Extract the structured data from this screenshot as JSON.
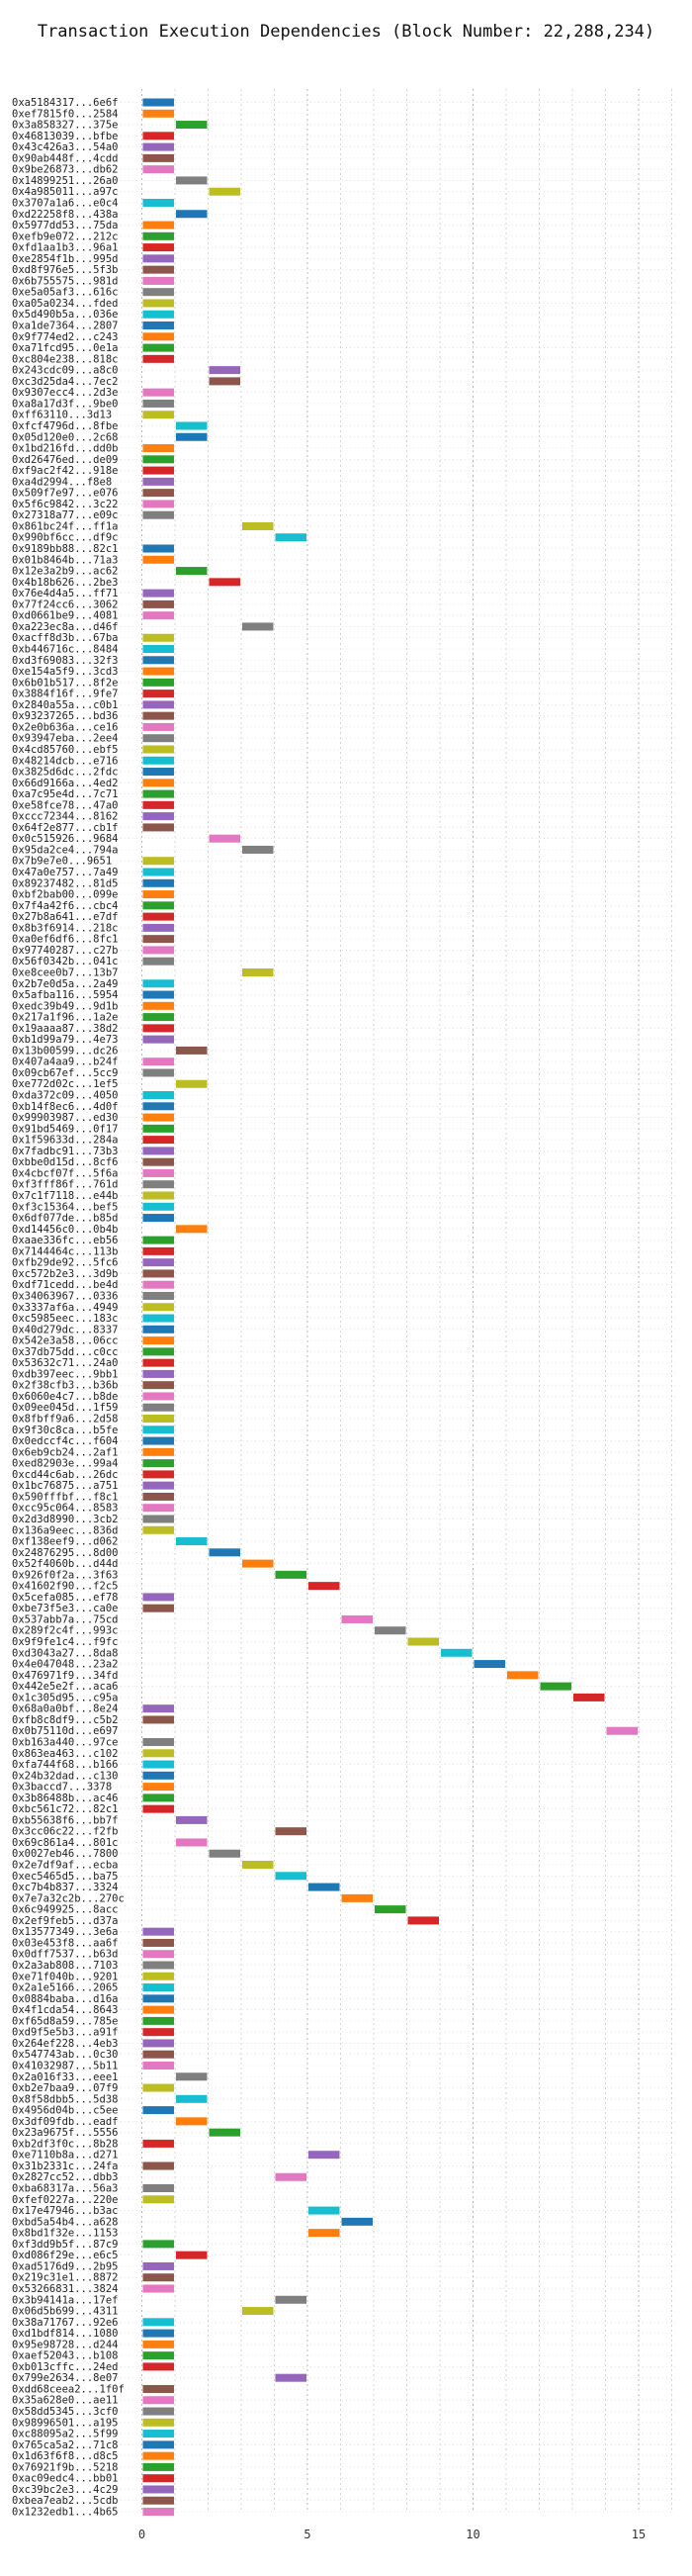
{
  "chart_data": {
    "type": "gantt",
    "title": "Transaction Execution Dependencies (Block Number: 22,288,234)",
    "xlim": [
      -1,
      16
    ],
    "xticks": [
      0,
      5,
      10,
      15
    ],
    "grid": true,
    "palette": [
      "#1f77b4",
      "#ff7f0e",
      "#2ca02c",
      "#d62728",
      "#9467bd",
      "#8c564b",
      "#e377c2",
      "#7f7f7f",
      "#bcbd22",
      "#17becf"
    ],
    "rows": [
      {
        "label": "0xa5184317...6e6f",
        "start": 0
      },
      {
        "label": "0xef7815f0...2584",
        "start": 0
      },
      {
        "label": "0x3a858327...375e",
        "start": 1
      },
      {
        "label": "0x46813039...bfbe",
        "start": 0
      },
      {
        "label": "0x43c426a3...54a0",
        "start": 0
      },
      {
        "label": "0x90ab448f...4cdd",
        "start": 0
      },
      {
        "label": "0x9be26873...db62",
        "start": 0
      },
      {
        "label": "0x14899251...26a0",
        "start": 1
      },
      {
        "label": "0x4a985011...a97c",
        "start": 2
      },
      {
        "label": "0x3707a1a6...e0c4",
        "start": 0
      },
      {
        "label": "0xd22258f8...438a",
        "start": 1
      },
      {
        "label": "0x5977dd53...75da",
        "start": 0
      },
      {
        "label": "0xefb9e072...212c",
        "start": 0
      },
      {
        "label": "0xfd1aa1b3...96a1",
        "start": 0
      },
      {
        "label": "0xe2854f1b...995d",
        "start": 0
      },
      {
        "label": "0xd8f976e5...5f3b",
        "start": 0
      },
      {
        "label": "0x6b755575...981d",
        "start": 0
      },
      {
        "label": "0xe5a05af3...616c",
        "start": 0
      },
      {
        "label": "0xa05a0234...fded",
        "start": 0
      },
      {
        "label": "0x5d490b5a...036e",
        "start": 0
      },
      {
        "label": "0xa1de7364...2807",
        "start": 0
      },
      {
        "label": "0x9f774ed2...c243",
        "start": 0
      },
      {
        "label": "0xa71fcd95...0e1a",
        "start": 0
      },
      {
        "label": "0xc804e238...818c",
        "start": 0
      },
      {
        "label": "0x243cdc09...a8c0",
        "start": 2
      },
      {
        "label": "0xc3d25da4...7ec2",
        "start": 2
      },
      {
        "label": "0x9307ecc4...2d3e",
        "start": 0
      },
      {
        "label": "0xa8a17d3f...9be0",
        "start": 0
      },
      {
        "label": "0xff63110...3d13",
        "start": 0
      },
      {
        "label": "0xfcf4796d...8fbe",
        "start": 1
      },
      {
        "label": "0x05d120e0...2c68",
        "start": 1
      },
      {
        "label": "0x1bd216fd...dd0b",
        "start": 0
      },
      {
        "label": "0xd26476ed...de09",
        "start": 0
      },
      {
        "label": "0xf9ac2f42...918e",
        "start": 0
      },
      {
        "label": "0xa4d2994...f8e8",
        "start": 0
      },
      {
        "label": "0x509f7e97...e076",
        "start": 0
      },
      {
        "label": "0x5f6c9842...3c22",
        "start": 0
      },
      {
        "label": "0x27318a77...e09c",
        "start": 0
      },
      {
        "label": "0x861bc24f...ff1a",
        "start": 3
      },
      {
        "label": "0x990bf6cc...df9c",
        "start": 4
      },
      {
        "label": "0x9189bb88...82c1",
        "start": 0
      },
      {
        "label": "0x01b8464b...71a3",
        "start": 0
      },
      {
        "label": "0x12e3a2b9...ac62",
        "start": 1
      },
      {
        "label": "0x4b18b626...2be3",
        "start": 2
      },
      {
        "label": "0x76e4d4a5...ff71",
        "start": 0
      },
      {
        "label": "0x77f24cc6...3062",
        "start": 0
      },
      {
        "label": "0xd0661be9...4081",
        "start": 0
      },
      {
        "label": "0xa223ec8a...d46f",
        "start": 3
      },
      {
        "label": "0xacff8d3b...67ba",
        "start": 0
      },
      {
        "label": "0xb446716c...8484",
        "start": 0
      },
      {
        "label": "0xd3f69083...32f3",
        "start": 0
      },
      {
        "label": "0xe154a5f9...3cd3",
        "start": 0
      },
      {
        "label": "0x6b01b517...8f2e",
        "start": 0
      },
      {
        "label": "0x3884f16f...9fe7",
        "start": 0
      },
      {
        "label": "0x2840a55a...c0b1",
        "start": 0
      },
      {
        "label": "0x93237265...bd36",
        "start": 0
      },
      {
        "label": "0x2e0b636a...ce16",
        "start": 0
      },
      {
        "label": "0x93947eba...2ee4",
        "start": 0
      },
      {
        "label": "0x4cd85760...ebf5",
        "start": 0
      },
      {
        "label": "0x48214dcb...e716",
        "start": 0
      },
      {
        "label": "0x3825d6dc...2fdc",
        "start": 0
      },
      {
        "label": "0x66d9166a...4ed2",
        "start": 0
      },
      {
        "label": "0xa7c95e4d...7c71",
        "start": 0
      },
      {
        "label": "0xe58fce78...47a0",
        "start": 0
      },
      {
        "label": "0xccc72344...8162",
        "start": 0
      },
      {
        "label": "0x64f2e877...cb1f",
        "start": 0
      },
      {
        "label": "0x0c515926...9684",
        "start": 2
      },
      {
        "label": "0x95da2ce4...794a",
        "start": 3
      },
      {
        "label": "0x7b9e7e0...9651",
        "start": 0
      },
      {
        "label": "0x47a0e757...7a49",
        "start": 0
      },
      {
        "label": "0x89237482...81d5",
        "start": 0
      },
      {
        "label": "0xbf2bab00...099e",
        "start": 0
      },
      {
        "label": "0x7f4a42f6...cbc4",
        "start": 0
      },
      {
        "label": "0x27b8a641...e7df",
        "start": 0
      },
      {
        "label": "0x8b3f6914...218c",
        "start": 0
      },
      {
        "label": "0xa0ef6df6...8fc1",
        "start": 0
      },
      {
        "label": "0x97740287...c27b",
        "start": 0
      },
      {
        "label": "0x56f0342b...041c",
        "start": 0
      },
      {
        "label": "0xe8cee0b7...13b7",
        "start": 3
      },
      {
        "label": "0x2b7e0d5a...2a49",
        "start": 0
      },
      {
        "label": "0x5afba116...5954",
        "start": 0
      },
      {
        "label": "0xedc39b49...9d1b",
        "start": 0
      },
      {
        "label": "0x217a1f96...1a2e",
        "start": 0
      },
      {
        "label": "0x19aaaa87...38d2",
        "start": 0
      },
      {
        "label": "0xb1d99a79...4e73",
        "start": 0
      },
      {
        "label": "0x13b00599...dc26",
        "start": 1
      },
      {
        "label": "0x407a4aa9...b24f",
        "start": 0
      },
      {
        "label": "0x09cb67ef...5cc9",
        "start": 0
      },
      {
        "label": "0xe772d02c...1ef5",
        "start": 1
      },
      {
        "label": "0xda372c09...4050",
        "start": 0
      },
      {
        "label": "0xb14f8ec6...4d0f",
        "start": 0
      },
      {
        "label": "0x99903987...ed30",
        "start": 0
      },
      {
        "label": "0x91bd5469...0f17",
        "start": 0
      },
      {
        "label": "0x1f59633d...284a",
        "start": 0
      },
      {
        "label": "0x7fadbc91...73b3",
        "start": 0
      },
      {
        "label": "0xbbe0d15d...8cf6",
        "start": 0
      },
      {
        "label": "0x4cbcf07f...5f6a",
        "start": 0
      },
      {
        "label": "0xf3fff86f...761d",
        "start": 0
      },
      {
        "label": "0x7c1f7118...e44b",
        "start": 0
      },
      {
        "label": "0xf3c15364...bef5",
        "start": 0
      },
      {
        "label": "0x6df077de...b85d",
        "start": 0
      },
      {
        "label": "0xd14456c0...0b4b",
        "start": 1
      },
      {
        "label": "0xaae336fc...eb56",
        "start": 0
      },
      {
        "label": "0x7144464c...113b",
        "start": 0
      },
      {
        "label": "0xfb29de92...5fc6",
        "start": 0
      },
      {
        "label": "0xc572b2e3...3d9b",
        "start": 0
      },
      {
        "label": "0xdf71cedd...be4d",
        "start": 0
      },
      {
        "label": "0x34063967...0336",
        "start": 0
      },
      {
        "label": "0x3337af6a...4949",
        "start": 0
      },
      {
        "label": "0xc5985eec...183c",
        "start": 0
      },
      {
        "label": "0x40d279dc...8337",
        "start": 0
      },
      {
        "label": "0x542e3a58...06cc",
        "start": 0
      },
      {
        "label": "0x37db75dd...c0cc",
        "start": 0
      },
      {
        "label": "0x53632c71...24a0",
        "start": 0
      },
      {
        "label": "0xdb397eec...9bb1",
        "start": 0
      },
      {
        "label": "0x2f38cfb3...b36b",
        "start": 0
      },
      {
        "label": "0x6060e4c7...b8de",
        "start": 0
      },
      {
        "label": "0x09ee045d...1f59",
        "start": 0
      },
      {
        "label": "0x8fbff9a6...2d58",
        "start": 0
      },
      {
        "label": "0x9f30c8ca...b5fe",
        "start": 0
      },
      {
        "label": "0x0edccf4c...f604",
        "start": 0
      },
      {
        "label": "0x6eb9cb24...2af1",
        "start": 0
      },
      {
        "label": "0xed82903e...99a4",
        "start": 0
      },
      {
        "label": "0xcd44c6ab...26dc",
        "start": 0
      },
      {
        "label": "0x1bc76875...a751",
        "start": 0
      },
      {
        "label": "0x590fffbf...f8c1",
        "start": 0
      },
      {
        "label": "0xcc95c064...8583",
        "start": 0
      },
      {
        "label": "0x2d3d8990...3cb2",
        "start": 0
      },
      {
        "label": "0x136a9eec...836d",
        "start": 0
      },
      {
        "label": "0xf138eef9...d062",
        "start": 1
      },
      {
        "label": "0x24876295...8d00",
        "start": 2
      },
      {
        "label": "0x52f4060b...d44d",
        "start": 3
      },
      {
        "label": "0x926f0f2a...3f63",
        "start": 4
      },
      {
        "label": "0x41602f90...f2c5",
        "start": 5
      },
      {
        "label": "0x5cefa085...ef78",
        "start": 0
      },
      {
        "label": "0xbe73f5e3...ca0e",
        "start": 0
      },
      {
        "label": "0x537abb7a...75cd",
        "start": 6
      },
      {
        "label": "0x289f2c4f...993c",
        "start": 7
      },
      {
        "label": "0x9f9fe1c4...f9fc",
        "start": 8
      },
      {
        "label": "0xd3043a27...8da8",
        "start": 9
      },
      {
        "label": "0x4e047048...23a2",
        "start": 10
      },
      {
        "label": "0x476971f9...34fd",
        "start": 11
      },
      {
        "label": "0x442e5e2f...aca6",
        "start": 12
      },
      {
        "label": "0x1c305d95...c95a",
        "start": 13
      },
      {
        "label": "0x68a0a0bf...8e24",
        "start": 0
      },
      {
        "label": "0xfb8c8df9...c5b2",
        "start": 0
      },
      {
        "label": "0x0b75110d...e697",
        "start": 14
      },
      {
        "label": "0xb163a440...97ce",
        "start": 0
      },
      {
        "label": "0x863ea463...c102",
        "start": 0
      },
      {
        "label": "0xfa744f68...b166",
        "start": 0
      },
      {
        "label": "0x24b32dad...c130",
        "start": 0
      },
      {
        "label": "0x3baccd7...3378",
        "start": 0
      },
      {
        "label": "0x3b86488b...ac46",
        "start": 0
      },
      {
        "label": "0xbc561c72...82c1",
        "start": 0
      },
      {
        "label": "0xb55638f6...bb7f",
        "start": 1
      },
      {
        "label": "0x3cc06c22...f2fb",
        "start": 4
      },
      {
        "label": "0x69c861a4...801c",
        "start": 1
      },
      {
        "label": "0x0027eb46...7800",
        "start": 2
      },
      {
        "label": "0x2e7df9af...ecba",
        "start": 3
      },
      {
        "label": "0xec5465d5...ba75",
        "start": 4
      },
      {
        "label": "0xc7b4b837...3324",
        "start": 5
      },
      {
        "label": "0x7e7a32c2b...270c",
        "start": 6
      },
      {
        "label": "0x6c949925...8acc",
        "start": 7
      },
      {
        "label": "0x2ef9feb5...d37a",
        "start": 8
      },
      {
        "label": "0x13577349...3e6a",
        "start": 0
      },
      {
        "label": "0x03e453f8...aa6f",
        "start": 0
      },
      {
        "label": "0x0dff7537...b63d",
        "start": 0
      },
      {
        "label": "0x2a3ab808...7103",
        "start": 0
      },
      {
        "label": "0xe71f040b...9201",
        "start": 0
      },
      {
        "label": "0x2a1e5166...2065",
        "start": 0
      },
      {
        "label": "0x0884baba...d16a",
        "start": 0
      },
      {
        "label": "0x4f1cda54...8643",
        "start": 0
      },
      {
        "label": "0xf65d8a59...785e",
        "start": 0
      },
      {
        "label": "0xd9f5e5b3...a91f",
        "start": 0
      },
      {
        "label": "0x264ef228...4eb3",
        "start": 0
      },
      {
        "label": "0x547743ab...0c30",
        "start": 0
      },
      {
        "label": "0x41032987...5b11",
        "start": 0
      },
      {
        "label": "0x2a016f33...eee1",
        "start": 1
      },
      {
        "label": "0xb2e7baa9...07f9",
        "start": 0
      },
      {
        "label": "0x8f58dbb5...5d38",
        "start": 1
      },
      {
        "label": "0x4956d04b...c5ee",
        "start": 0
      },
      {
        "label": "0x3df09fdb...eadf",
        "start": 1
      },
      {
        "label": "0x23a9675f...5556",
        "start": 2
      },
      {
        "label": "0xb2df3f0c...8b28",
        "start": 0
      },
      {
        "label": "0xe7110b8a...d271",
        "start": 5
      },
      {
        "label": "0x31b2331c...24fa",
        "start": 0
      },
      {
        "label": "0x2827cc52...dbb3",
        "start": 4
      },
      {
        "label": "0xba68317a...56a3",
        "start": 0
      },
      {
        "label": "0xfef0227a...220e",
        "start": 0
      },
      {
        "label": "0x17e47946...b3ac",
        "start": 5
      },
      {
        "label": "0xbd5a54b4...a628",
        "start": 6
      },
      {
        "label": "0x8bd1f32e...1153",
        "start": 5
      },
      {
        "label": "0xf3dd9b5f...87c9",
        "start": 0
      },
      {
        "label": "0xd086f29e...e6c5",
        "start": 1
      },
      {
        "label": "0xad5176d9...2b95",
        "start": 0
      },
      {
        "label": "0x219c31e1...8872",
        "start": 0
      },
      {
        "label": "0x53266831...3824",
        "start": 0
      },
      {
        "label": "0x3b94141a...17ef",
        "start": 4
      },
      {
        "label": "0x06d5b699...4311",
        "start": 3
      },
      {
        "label": "0x38a71767...92e6",
        "start": 0
      },
      {
        "label": "0xd1bdf814...1080",
        "start": 0
      },
      {
        "label": "0x95e98728...d244",
        "start": 0
      },
      {
        "label": "0xaef52043...b108",
        "start": 0
      },
      {
        "label": "0xb013cffc...24ed",
        "start": 0
      },
      {
        "label": "0x799e2634...8e07",
        "start": 4
      },
      {
        "label": "0xdd68ceea2...1f0f",
        "start": 0
      },
      {
        "label": "0x35a628e0...ae11",
        "start": 0
      },
      {
        "label": "0x58dd5345...3cf0",
        "start": 0
      },
      {
        "label": "0x98996501...a195",
        "start": 0
      },
      {
        "label": "0xc88095a2...5f99",
        "start": 0
      },
      {
        "label": "0x765ca5a2...71c8",
        "start": 0
      },
      {
        "label": "0x1d63f6f8...d8c5",
        "start": 0
      },
      {
        "label": "0x76921f9b...5218",
        "start": 0
      },
      {
        "label": "0xac09edc4...bb01",
        "start": 0
      },
      {
        "label": "0xc39bc2e3...4c29",
        "start": 0
      },
      {
        "label": "0xbea7eab2...5cdb",
        "start": 0
      },
      {
        "label": "0x1232edb1...4b65",
        "start": 0
      }
    ]
  }
}
